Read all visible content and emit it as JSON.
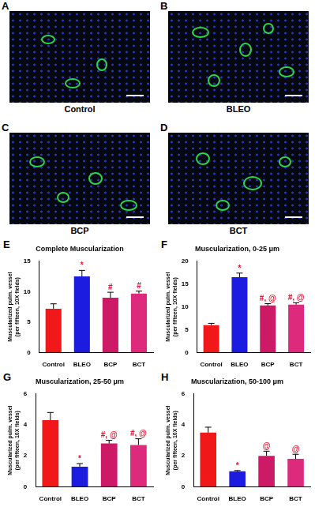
{
  "panels": [
    {
      "letter": "A",
      "label": "Control"
    },
    {
      "letter": "B",
      "label": "BLEO"
    },
    {
      "letter": "C",
      "label": "BCP"
    },
    {
      "letter": "D",
      "label": "BCT"
    }
  ],
  "chart_data": [
    {
      "panel": "E",
      "type": "bar",
      "title": "Complete Muscularization",
      "y_label": [
        "Muscularized pulm. vessel",
        "(per fifteen, 10X fields)"
      ],
      "categories": [
        "Control",
        "BLEO",
        "BCP",
        "BCT"
      ],
      "values": [
        7.2,
        12.5,
        9.0,
        9.7
      ],
      "errors": [
        0.8,
        1.0,
        0.9,
        0.4
      ],
      "annotations": [
        null,
        "*",
        "#",
        "#"
      ],
      "colors": [
        "#f01818",
        "#1c1ce0",
        "#cc1a66",
        "#de2a7c"
      ],
      "ylim": [
        0,
        15
      ],
      "yticks": [
        0,
        5,
        10,
        15
      ],
      "grid": false
    },
    {
      "panel": "F",
      "type": "bar",
      "title": "Muscularization, 0-25 μm",
      "y_label": [
        "Muscularized pulm. vessel",
        "(per fifteen, 10X fields)"
      ],
      "categories": [
        "Control",
        "BLEO",
        "BCP",
        "BCT"
      ],
      "values": [
        6.0,
        16.5,
        10.3,
        10.5
      ],
      "errors": [
        0.4,
        0.9,
        0.4,
        0.4
      ],
      "annotations": [
        null,
        "*",
        "#, @",
        "#, @"
      ],
      "colors": [
        "#f01818",
        "#1c1ce0",
        "#cc1a66",
        "#de2a7c"
      ],
      "ylim": [
        0,
        20
      ],
      "yticks": [
        0,
        5,
        10,
        15,
        20
      ],
      "grid": false
    },
    {
      "panel": "G",
      "type": "bar",
      "title": "Muscularization, 25-50 μm",
      "y_label": [
        "Muscularized pulm. vessel",
        "(per fifteen, 10X fields)"
      ],
      "categories": [
        "Control",
        "BLEO",
        "BCP",
        "BCT"
      ],
      "values": [
        4.3,
        1.3,
        2.8,
        2.7
      ],
      "errors": [
        0.5,
        0.2,
        0.2,
        0.4
      ],
      "annotations": [
        null,
        "*",
        "#, @",
        "#, @"
      ],
      "colors": [
        "#f01818",
        "#1c1ce0",
        "#cc1a66",
        "#de2a7c"
      ],
      "ylim": [
        0,
        6
      ],
      "yticks": [
        0,
        2,
        4,
        6
      ],
      "grid": false
    },
    {
      "panel": "H",
      "type": "bar",
      "title": "Muscularization, 50-100 μm",
      "y_label": [
        "Muscularized pulm. vessel",
        "(per fifteen, 10X fields)"
      ],
      "categories": [
        "Control",
        "BLEO",
        "BCP",
        "BCT"
      ],
      "values": [
        3.5,
        1.0,
        2.0,
        1.8
      ],
      "errors": [
        0.35,
        0.05,
        0.3,
        0.3
      ],
      "annotations": [
        null,
        "*",
        "@",
        "@"
      ],
      "colors": [
        "#f01818",
        "#1c1ce0",
        "#cc1a66",
        "#de2a7c"
      ],
      "ylim": [
        0,
        6
      ],
      "yticks": [
        0,
        2,
        4,
        6
      ],
      "grid": false
    }
  ]
}
